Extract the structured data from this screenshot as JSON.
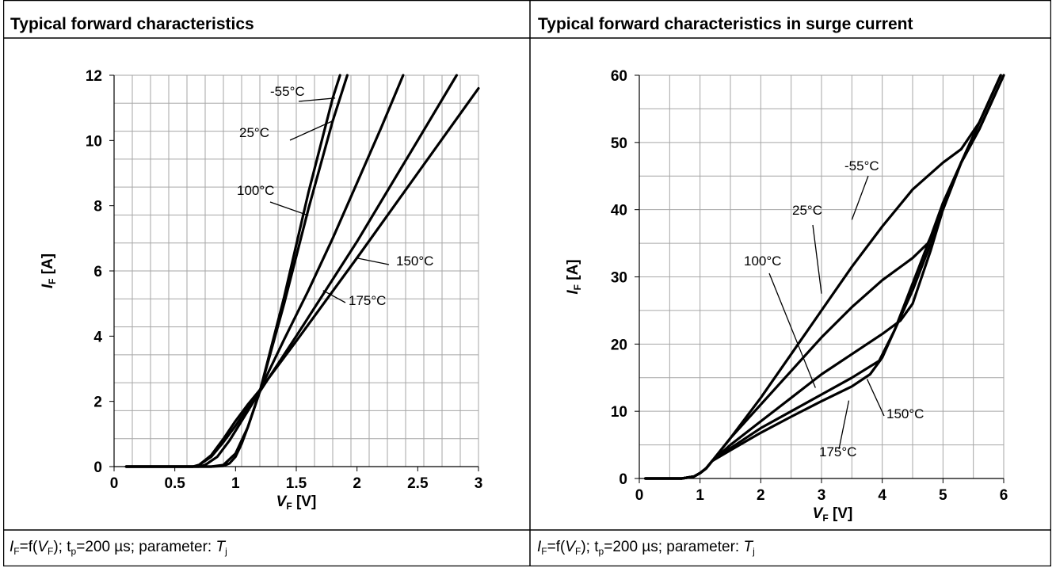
{
  "panels": [
    {
      "title": "Typical forward characteristics"
    },
    {
      "title": "Typical forward characteristics in surge current"
    }
  ],
  "captions": [
    {
      "i": "I",
      "isub": "F",
      "eq": "=f(",
      "v": "V",
      "vsub": "F",
      "rest": "); t",
      "tsub": "p",
      "rest2": "=200 µs; parameter: ",
      "t": "T",
      "jsub": "j"
    },
    {
      "i": "I",
      "isub": "F",
      "eq": "=f(",
      "v": "V",
      "vsub": "F",
      "rest": "); t",
      "tsub": "p",
      "rest2": "=200 µs; parameter: ",
      "t": "T",
      "jsub": "j"
    }
  ],
  "chart_data": [
    {
      "type": "line",
      "title": "Typical forward characteristics",
      "xlabel": "VF [V]",
      "ylabel": "IF [A]",
      "xlim": [
        0,
        3
      ],
      "ylim": [
        0,
        12
      ],
      "xticks": [
        "0",
        "0.5",
        "1",
        "1.5",
        "2",
        "2.5",
        "3"
      ],
      "yticks": [
        "0",
        "2",
        "4",
        "6",
        "8",
        "10",
        "12"
      ],
      "grid": true,
      "series": [
        {
          "name": "-55°C",
          "x": [
            0.1,
            0.8,
            0.9,
            0.95,
            1.0,
            1.05,
            1.1,
            1.2,
            1.4,
            1.6,
            1.8,
            1.86
          ],
          "y": [
            0,
            0,
            0.02,
            0.1,
            0.3,
            0.7,
            1.2,
            2.3,
            5.2,
            8.4,
            11.3,
            12
          ]
        },
        {
          "name": "25°C",
          "x": [
            0.1,
            0.8,
            0.9,
            1.0,
            1.1,
            1.2,
            1.4,
            1.6,
            1.8,
            1.92
          ],
          "y": [
            0,
            0,
            0.05,
            0.4,
            1.2,
            2.3,
            5.0,
            7.9,
            10.6,
            12
          ]
        },
        {
          "name": "100°C",
          "x": [
            0.1,
            0.7,
            0.75,
            0.85,
            0.95,
            1.05,
            1.15,
            1.2,
            1.4,
            1.6,
            1.8,
            2.0,
            2.2,
            2.38
          ],
          "y": [
            0,
            0,
            0.05,
            0.3,
            0.8,
            1.4,
            2.0,
            2.35,
            3.9,
            5.4,
            7.0,
            8.7,
            10.4,
            12
          ]
        },
        {
          "name": "150°C",
          "x": [
            0.1,
            0.65,
            0.7,
            0.8,
            0.9,
            1.0,
            1.1,
            1.2,
            1.5,
            2.0,
            2.5,
            2.82
          ],
          "y": [
            0,
            0,
            0.05,
            0.3,
            0.75,
            1.25,
            1.8,
            2.3,
            4.0,
            6.9,
            10.0,
            12
          ]
        },
        {
          "name": "175°C",
          "x": [
            0.1,
            0.65,
            0.7,
            0.8,
            0.9,
            1.0,
            1.1,
            1.2,
            1.5,
            2.0,
            2.5,
            3.0
          ],
          "y": [
            0,
            0,
            0.05,
            0.35,
            0.85,
            1.4,
            1.9,
            2.35,
            3.85,
            6.4,
            9.0,
            11.6
          ]
        }
      ],
      "annotations": [
        {
          "text": "-55°C",
          "target": [
            1.82,
            11.3
          ]
        },
        {
          "text": "25°C",
          "target": [
            1.8,
            10.6
          ]
        },
        {
          "text": "100°C",
          "target": [
            1.6,
            7.7
          ]
        },
        {
          "text": "150°C",
          "target": [
            1.99,
            6.4
          ]
        },
        {
          "text": "175°C",
          "target": [
            1.72,
            5.4
          ]
        }
      ]
    },
    {
      "type": "line",
      "title": "Typical forward characteristics in surge current",
      "xlabel": "VF [V]",
      "ylabel": "IF [A]",
      "xlim": [
        0,
        6
      ],
      "ylim": [
        0,
        60
      ],
      "xticks": [
        "0",
        "1",
        "2",
        "3",
        "4",
        "5",
        "6"
      ],
      "yticks": [
        "0",
        "10",
        "20",
        "30",
        "40",
        "50",
        "60"
      ],
      "grid": true,
      "series": [
        {
          "name": "-55°C",
          "x": [
            0.1,
            0.7,
            0.9,
            1.0,
            1.1,
            1.2,
            1.5,
            2.0,
            2.5,
            3.0,
            3.5,
            4.0,
            4.5,
            5.0,
            5.3,
            5.6,
            5.85,
            5.95
          ],
          "y": [
            0,
            0,
            0.3,
            0.8,
            1.5,
            2.6,
            6,
            12,
            18.5,
            25,
            31.5,
            37.5,
            43,
            47,
            49,
            53,
            58,
            60
          ]
        },
        {
          "name": "25°C",
          "x": [
            0.1,
            0.7,
            0.9,
            1.0,
            1.1,
            1.2,
            1.5,
            2.0,
            2.5,
            3.0,
            3.5,
            4.0,
            4.5,
            4.75,
            5.0,
            5.3,
            5.6,
            5.85,
            5.95
          ],
          "y": [
            0,
            0,
            0.3,
            0.8,
            1.5,
            2.6,
            6,
            11,
            16,
            21,
            25.5,
            29.5,
            32.8,
            35,
            40,
            47,
            53,
            58,
            60
          ]
        },
        {
          "name": "100°C",
          "x": [
            0.1,
            0.7,
            0.9,
            1.0,
            1.1,
            1.2,
            1.5,
            2.0,
            2.5,
            3.0,
            3.5,
            4.0,
            4.3,
            4.5,
            4.8,
            5.0,
            5.3,
            5.6,
            5.85,
            5.95
          ],
          "y": [
            0,
            0,
            0.3,
            0.8,
            1.5,
            2.6,
            5,
            8.5,
            12,
            15.5,
            18.5,
            21.5,
            23.5,
            26,
            34,
            40,
            47,
            53,
            58,
            60
          ]
        },
        {
          "name": "150°C",
          "x": [
            0.1,
            0.7,
            0.9,
            1.0,
            1.1,
            1.2,
            1.5,
            2.0,
            2.5,
            3.0,
            3.5,
            3.95,
            4.2,
            4.5,
            4.8,
            5.0,
            5.3,
            5.6,
            5.85,
            6.0
          ],
          "y": [
            0,
            0,
            0.3,
            0.8,
            1.5,
            2.6,
            4.5,
            7.5,
            10,
            12.5,
            15,
            17.5,
            22,
            29,
            36,
            41,
            47,
            52,
            57,
            60
          ]
        },
        {
          "name": "175°C",
          "x": [
            0.1,
            0.7,
            0.9,
            1.0,
            1.1,
            1.2,
            1.5,
            2.0,
            2.5,
            3.0,
            3.5,
            3.8,
            4.0,
            4.2,
            4.5,
            4.8,
            5.0,
            5.3,
            5.6,
            5.85,
            6.0
          ],
          "y": [
            0,
            0,
            0.3,
            0.8,
            1.5,
            2.6,
            4.2,
            6.8,
            9.2,
            11.5,
            13.7,
            15.5,
            18,
            22,
            28,
            35,
            40.5,
            47,
            52,
            57,
            60
          ]
        }
      ],
      "annotations": [
        {
          "text": "-55°C",
          "target": [
            3.5,
            38.5
          ]
        },
        {
          "text": "25°C",
          "target": [
            3.0,
            27.5
          ]
        },
        {
          "text": "100°C",
          "target": [
            2.9,
            13.5
          ]
        },
        {
          "text": "150°C",
          "target": [
            3.75,
            14.8
          ]
        },
        {
          "text": "175°C",
          "target": [
            3.45,
            11.6
          ]
        }
      ]
    }
  ]
}
